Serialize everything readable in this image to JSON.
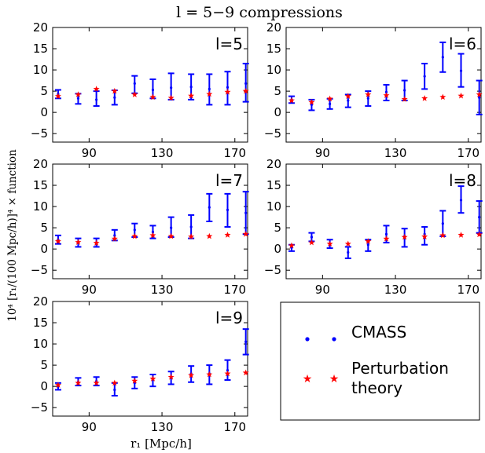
{
  "figure": {
    "title": "l = 5−9   compressions",
    "ylabel": "10⁴ [r₁/(100  Mpc/h)]⁴ × function",
    "xlabel": "r₁  [Mpc/h]"
  },
  "legend": {
    "entries": [
      {
        "label": "CMASS",
        "color": "#0000ff",
        "marker": "dot"
      },
      {
        "label": "Perturbation",
        "label2": "theory",
        "color": "#ff0000",
        "marker": "star"
      }
    ]
  },
  "chart_data": [
    {
      "type": "scatter",
      "panel_label": "l=5",
      "xlim": [
        70,
        177
      ],
      "ylim": [
        -7,
        20
      ],
      "xticks": [
        90,
        130,
        170
      ],
      "yticks": [
        -5,
        0,
        5,
        10,
        15,
        20
      ],
      "x": [
        73,
        84,
        94,
        104,
        115,
        125,
        135,
        146,
        156,
        166,
        176
      ],
      "series": [
        {
          "name": "CMASS",
          "type": "errorbar",
          "color": "#0000ff",
          "y": [
            4.3,
            3.3,
            3.0,
            3.5,
            6.8,
            5.3,
            5.8,
            6.0,
            5.5,
            5.9,
            6.8
          ],
          "lower": [
            3.3,
            2.0,
            1.5,
            1.8,
            4.5,
            3.3,
            3.0,
            3.0,
            1.8,
            1.8,
            2.5
          ],
          "upper": [
            5.3,
            4.4,
            5.0,
            5.2,
            8.6,
            7.8,
            9.2,
            9.0,
            9.0,
            9.6,
            11.5
          ]
        },
        {
          "name": "Perturbation theory",
          "type": "scatter",
          "color": "#ff0000",
          "y": [
            3.8,
            4.2,
            5.5,
            5.0,
            4.2,
            3.6,
            3.4,
            3.9,
            4.3,
            4.8,
            5.0
          ]
        }
      ]
    },
    {
      "type": "scatter",
      "panel_label": "l=6",
      "xlim": [
        70,
        177
      ],
      "ylim": [
        -7,
        20
      ],
      "xticks": [
        90,
        130,
        170
      ],
      "yticks": [
        -5,
        0,
        5,
        10,
        15,
        20
      ],
      "x": [
        73,
        84,
        94,
        104,
        115,
        125,
        135,
        146,
        156,
        166,
        176
      ],
      "series": [
        {
          "name": "CMASS",
          "type": "errorbar",
          "color": "#0000ff",
          "y": [
            3.0,
            1.8,
            2.0,
            2.8,
            3.3,
            4.8,
            5.2,
            8.5,
            13.0,
            9.8,
            3.5
          ],
          "lower": [
            2.2,
            0.5,
            0.8,
            1.2,
            1.5,
            2.8,
            2.8,
            5.5,
            9.5,
            6.0,
            -0.5
          ],
          "upper": [
            3.8,
            3.0,
            3.2,
            4.2,
            5.0,
            6.5,
            7.5,
            11.5,
            16.5,
            13.8,
            7.5
          ]
        },
        {
          "name": "Perturbation theory",
          "type": "scatter",
          "color": "#ff0000",
          "y": [
            2.8,
            2.4,
            3.2,
            3.8,
            4.2,
            4.0,
            3.1,
            3.3,
            3.6,
            3.9,
            4.2
          ]
        }
      ]
    },
    {
      "type": "scatter",
      "panel_label": "l=7",
      "xlim": [
        70,
        177
      ],
      "ylim": [
        -7,
        20
      ],
      "xticks": [
        90,
        130,
        170
      ],
      "yticks": [
        -5,
        0,
        5,
        10,
        15,
        20
      ],
      "x": [
        73,
        84,
        94,
        104,
        115,
        125,
        135,
        146,
        156,
        166,
        176
      ],
      "series": [
        {
          "name": "CMASS",
          "type": "errorbar",
          "color": "#0000ff",
          "y": [
            2.2,
            1.5,
            1.5,
            3.2,
            4.5,
            4.0,
            5.0,
            5.2,
            9.8,
            9.2,
            8.5
          ],
          "lower": [
            1.2,
            0.5,
            0.5,
            2.0,
            2.8,
            2.5,
            2.8,
            2.5,
            6.5,
            5.2,
            3.5
          ],
          "upper": [
            3.2,
            2.5,
            2.5,
            4.5,
            6.0,
            5.5,
            7.5,
            8.0,
            13.0,
            13.0,
            13.5
          ]
        },
        {
          "name": "Perturbation theory",
          "type": "scatter",
          "color": "#ff0000",
          "y": [
            1.8,
            1.6,
            1.4,
            2.4,
            3.0,
            3.2,
            3.0,
            2.9,
            3.0,
            3.3,
            3.5
          ]
        }
      ]
    },
    {
      "type": "scatter",
      "panel_label": "l=8",
      "xlim": [
        70,
        177
      ],
      "ylim": [
        -7,
        20
      ],
      "xticks": [
        90,
        130,
        170
      ],
      "yticks": [
        -5,
        0,
        5,
        10,
        15,
        20
      ],
      "x": [
        73,
        84,
        94,
        104,
        115,
        125,
        135,
        146,
        156,
        166,
        176
      ],
      "series": [
        {
          "name": "CMASS",
          "type": "errorbar",
          "color": "#0000ff",
          "y": [
            0.3,
            2.8,
            1.2,
            -0.8,
            1.0,
            3.5,
            3.0,
            3.5,
            6.0,
            11.5,
            7.5
          ],
          "lower": [
            -0.5,
            1.8,
            0.2,
            -2.2,
            -0.5,
            1.5,
            0.5,
            1.0,
            3.0,
            8.5,
            3.8
          ],
          "upper": [
            1.0,
            3.8,
            2.2,
            0.5,
            2.2,
            5.5,
            4.8,
            5.2,
            9.0,
            14.8,
            11.3
          ]
        },
        {
          "name": "Perturbation theory",
          "type": "scatter",
          "color": "#ff0000",
          "y": [
            0.8,
            1.5,
            1.2,
            1.2,
            1.8,
            2.4,
            2.8,
            2.9,
            3.2,
            3.3,
            3.4
          ]
        }
      ]
    },
    {
      "type": "scatter",
      "panel_label": "l=9",
      "xlim": [
        70,
        177
      ],
      "ylim": [
        -7,
        20
      ],
      "xticks": [
        90,
        130,
        170
      ],
      "yticks": [
        -5,
        0,
        5,
        10,
        15,
        20
      ],
      "x": [
        73,
        84,
        94,
        104,
        115,
        125,
        135,
        146,
        156,
        166,
        176
      ],
      "series": [
        {
          "name": "CMASS",
          "type": "errorbar",
          "color": "#0000ff",
          "y": [
            0.0,
            1.0,
            1.2,
            -0.8,
            0.8,
            1.5,
            2.0,
            3.0,
            3.0,
            3.8,
            10.5
          ],
          "lower": [
            -0.8,
            0.2,
            0.2,
            -2.2,
            -0.5,
            0.0,
            0.5,
            1.0,
            0.5,
            1.5,
            7.5
          ],
          "upper": [
            0.8,
            2.0,
            2.2,
            0.8,
            2.2,
            2.8,
            3.5,
            4.8,
            5.0,
            6.2,
            13.5
          ]
        },
        {
          "name": "Perturbation theory",
          "type": "scatter",
          "color": "#ff0000",
          "y": [
            0.3,
            0.8,
            0.8,
            0.8,
            1.3,
            1.8,
            2.2,
            2.6,
            2.8,
            3.0,
            3.2
          ]
        }
      ]
    }
  ]
}
